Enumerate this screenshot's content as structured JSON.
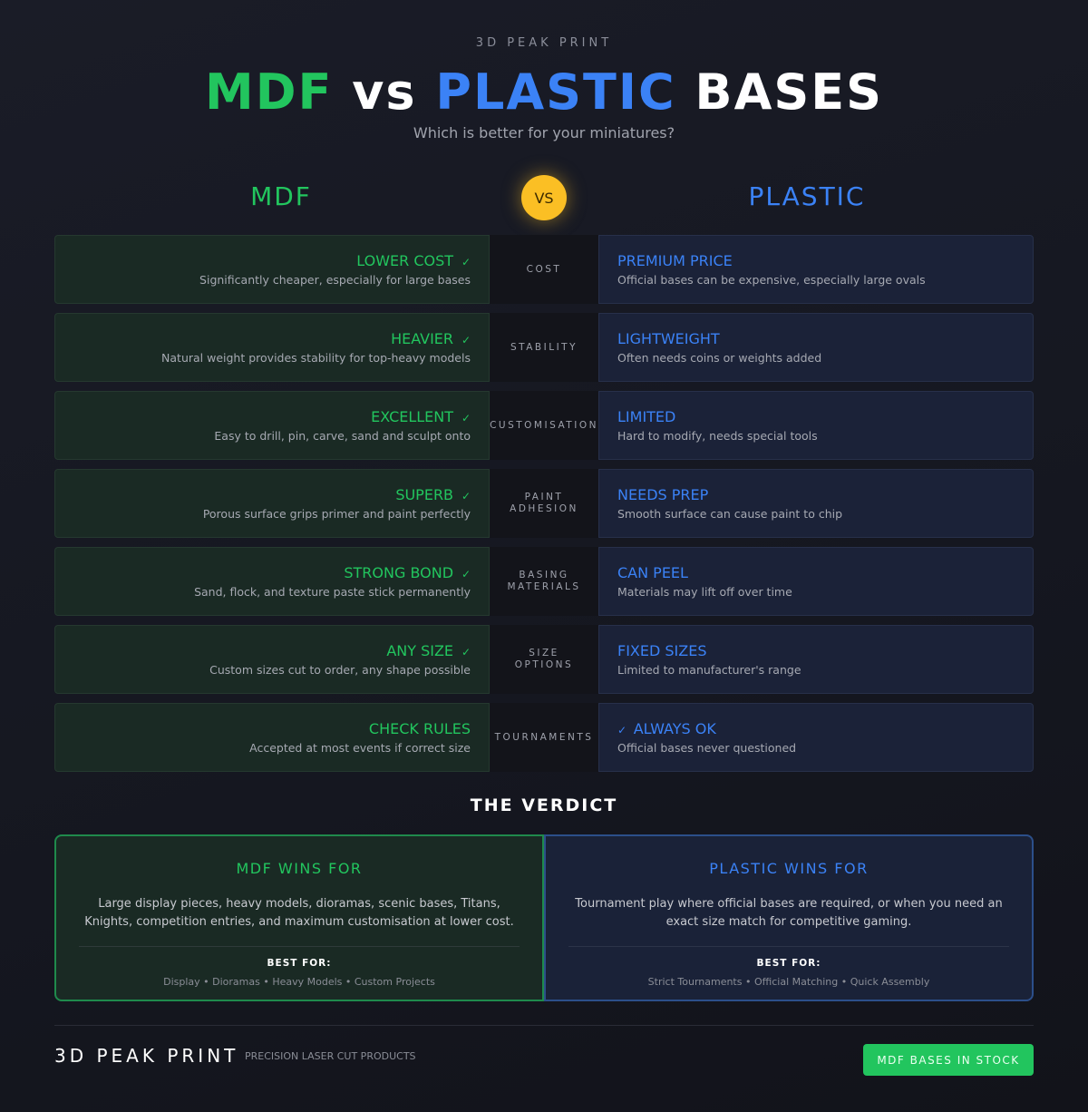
{
  "header": {
    "brand": "3D PEAK PRINT",
    "title_mdf": "MDF",
    "title_vs": "vs",
    "title_plastic": "PLASTIC",
    "title_bases": "BASES",
    "subtitle": "Which is better for your miniatures?"
  },
  "columns": {
    "mdf": "MDF",
    "vs": "VS",
    "plastic": "PLASTIC"
  },
  "colors": {
    "mdf": "#22c55e",
    "plastic": "#3b82f6",
    "vs": "#fbbf24"
  },
  "rows": [
    {
      "category": "COST",
      "mdf": {
        "title": "LOWER COST",
        "desc": "Significantly cheaper, especially for large bases",
        "check": true
      },
      "plastic": {
        "title": "PREMIUM PRICE",
        "desc": "Official bases can be expensive, especially large ovals",
        "check": false
      }
    },
    {
      "category": "STABILITY",
      "mdf": {
        "title": "HEAVIER",
        "desc": "Natural weight provides stability for top-heavy models",
        "check": true
      },
      "plastic": {
        "title": "LIGHTWEIGHT",
        "desc": "Often needs coins or weights added",
        "check": false
      }
    },
    {
      "category": "CUSTOMISATION",
      "mdf": {
        "title": "EXCELLENT",
        "desc": "Easy to drill, pin, carve, sand and sculpt onto",
        "check": true
      },
      "plastic": {
        "title": "LIMITED",
        "desc": "Hard to modify, needs special tools",
        "check": false
      }
    },
    {
      "category": "PAINT\nADHESION",
      "mdf": {
        "title": "SUPERB",
        "desc": "Porous surface grips primer and paint perfectly",
        "check": true
      },
      "plastic": {
        "title": "NEEDS PREP",
        "desc": "Smooth surface can cause paint to chip",
        "check": false
      }
    },
    {
      "category": "BASING\nMATERIALS",
      "mdf": {
        "title": "STRONG BOND",
        "desc": "Sand, flock, and texture paste stick permanently",
        "check": true
      },
      "plastic": {
        "title": "CAN PEEL",
        "desc": "Materials may lift off over time",
        "check": false
      }
    },
    {
      "category": "SIZE\nOPTIONS",
      "mdf": {
        "title": "ANY SIZE",
        "desc": "Custom sizes cut to order, any shape possible",
        "check": true
      },
      "plastic": {
        "title": "FIXED SIZES",
        "desc": "Limited to manufacturer's range",
        "check": false
      }
    },
    {
      "category": "TOURNAMENTS",
      "mdf": {
        "title": "CHECK RULES",
        "desc": "Accepted at most events if correct size",
        "check": false
      },
      "plastic": {
        "title": "ALWAYS OK",
        "desc": "Official bases never questioned",
        "check": true
      }
    }
  ],
  "verdict": {
    "title": "THE VERDICT",
    "mdf": {
      "title": "MDF WINS FOR",
      "desc": "Large display pieces, heavy models, dioramas, scenic bases, Titans, Knights, competition entries, and maximum customisation at lower cost.",
      "best_label": "BEST FOR:",
      "best": "Display • Dioramas • Heavy Models • Custom Projects"
    },
    "plastic": {
      "title": "PLASTIC WINS FOR",
      "desc": "Tournament play where official bases are required, or when you need an exact size match for competitive gaming.",
      "best_label": "BEST FOR:",
      "best": "Strict Tournaments • Official Matching • Quick Assembly"
    }
  },
  "footer": {
    "brand": "3D PEAK PRINT",
    "tagline": "PRECISION LASER CUT PRODUCTS",
    "cta": "MDF BASES IN STOCK"
  }
}
